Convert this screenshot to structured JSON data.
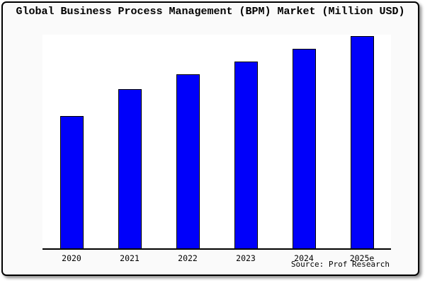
{
  "chart_data": {
    "type": "bar",
    "title": "Global Business Process Management (BPM) Market (Million USD)",
    "categories": [
      "2020",
      "2021",
      "2022",
      "2023",
      "2024",
      "2025e"
    ],
    "values": [
      62,
      74.5,
      81.5,
      87.5,
      93.5,
      99.5
    ],
    "xlabel": "",
    "ylabel": "",
    "ylim": [
      0,
      100
    ],
    "y_axis_labels_visible": false,
    "grid": false,
    "legend": false,
    "note": "No y-axis tick labels are shown in the chart; values are estimated bar heights as percent of the plot-area height.",
    "source": "Source: Prof Research",
    "bar_color": "#0000fa",
    "bar_border_color": "#000000",
    "axis_color": "#000000",
    "plot_background": "#ffffff",
    "frame_background": "#fafafa"
  }
}
